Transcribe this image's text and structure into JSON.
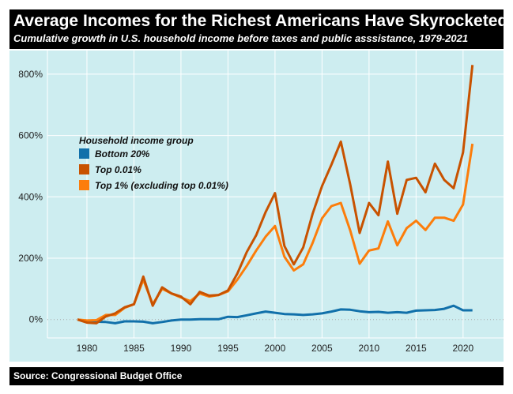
{
  "chart_data": {
    "type": "line",
    "title": "Average Incomes for the Richest Americans Have Skyrocketed",
    "subtitle": "Cumulative growth in U.S. household income before taxes and public asssistance, 1979-2021",
    "source": "Source: Congressional Budget Office",
    "xlabel": "",
    "ylabel": "",
    "xlim": [
      1975.8,
      2024.3
    ],
    "ylim": [
      -60,
      877
    ],
    "x_ticks": [
      1980,
      1985,
      1990,
      1995,
      2000,
      2005,
      2010,
      2015,
      2020
    ],
    "y_ticks": [
      0,
      200,
      400,
      600,
      800
    ],
    "y_tick_labels": [
      "0%",
      "200%",
      "400%",
      "600%",
      "800%"
    ],
    "grid": true,
    "background": "#cdedf0",
    "legend": {
      "title": "Household income group",
      "placement": "top-left"
    },
    "x": [
      1979,
      1980,
      1981,
      1982,
      1983,
      1984,
      1985,
      1986,
      1987,
      1988,
      1989,
      1990,
      1991,
      1992,
      1993,
      1994,
      1995,
      1996,
      1997,
      1998,
      1999,
      2000,
      2001,
      2002,
      2003,
      2004,
      2005,
      2006,
      2007,
      2008,
      2009,
      2010,
      2011,
      2012,
      2013,
      2014,
      2015,
      2016,
      2017,
      2018,
      2019,
      2020,
      2021
    ],
    "series": [
      {
        "name": "Bottom 20%",
        "color": "#1170aa",
        "values": [
          0,
          -5,
          -7,
          -8,
          -12,
          -6,
          -6,
          -7,
          -12,
          -8,
          -3,
          0,
          0,
          1,
          1,
          1,
          9,
          8,
          14,
          20,
          26,
          22,
          18,
          17,
          15,
          17,
          20,
          26,
          33,
          32,
          27,
          24,
          25,
          22,
          24,
          22,
          29,
          30,
          31,
          35,
          45,
          30,
          30
        ]
      },
      {
        "name": "Top 0.01%",
        "color": "#c85200",
        "values": [
          0,
          -10,
          -12,
          10,
          20,
          40,
          50,
          140,
          45,
          105,
          85,
          75,
          50,
          90,
          78,
          80,
          95,
          150,
          220,
          275,
          350,
          412,
          240,
          180,
          235,
          345,
          435,
          505,
          580,
          440,
          282,
          380,
          340,
          515,
          345,
          455,
          462,
          415,
          508,
          455,
          428,
          545,
          830
        ]
      },
      {
        "name": "Top 1% (excluding top 0.01%)",
        "color": "#fc7d0b",
        "values": [
          0,
          -3,
          -2,
          15,
          15,
          38,
          50,
          130,
          50,
          100,
          85,
          72,
          60,
          85,
          75,
          80,
          92,
          130,
          175,
          225,
          270,
          305,
          205,
          160,
          180,
          250,
          330,
          370,
          380,
          290,
          182,
          225,
          232,
          320,
          242,
          298,
          322,
          292,
          332,
          332,
          322,
          375,
          573
        ]
      }
    ]
  }
}
